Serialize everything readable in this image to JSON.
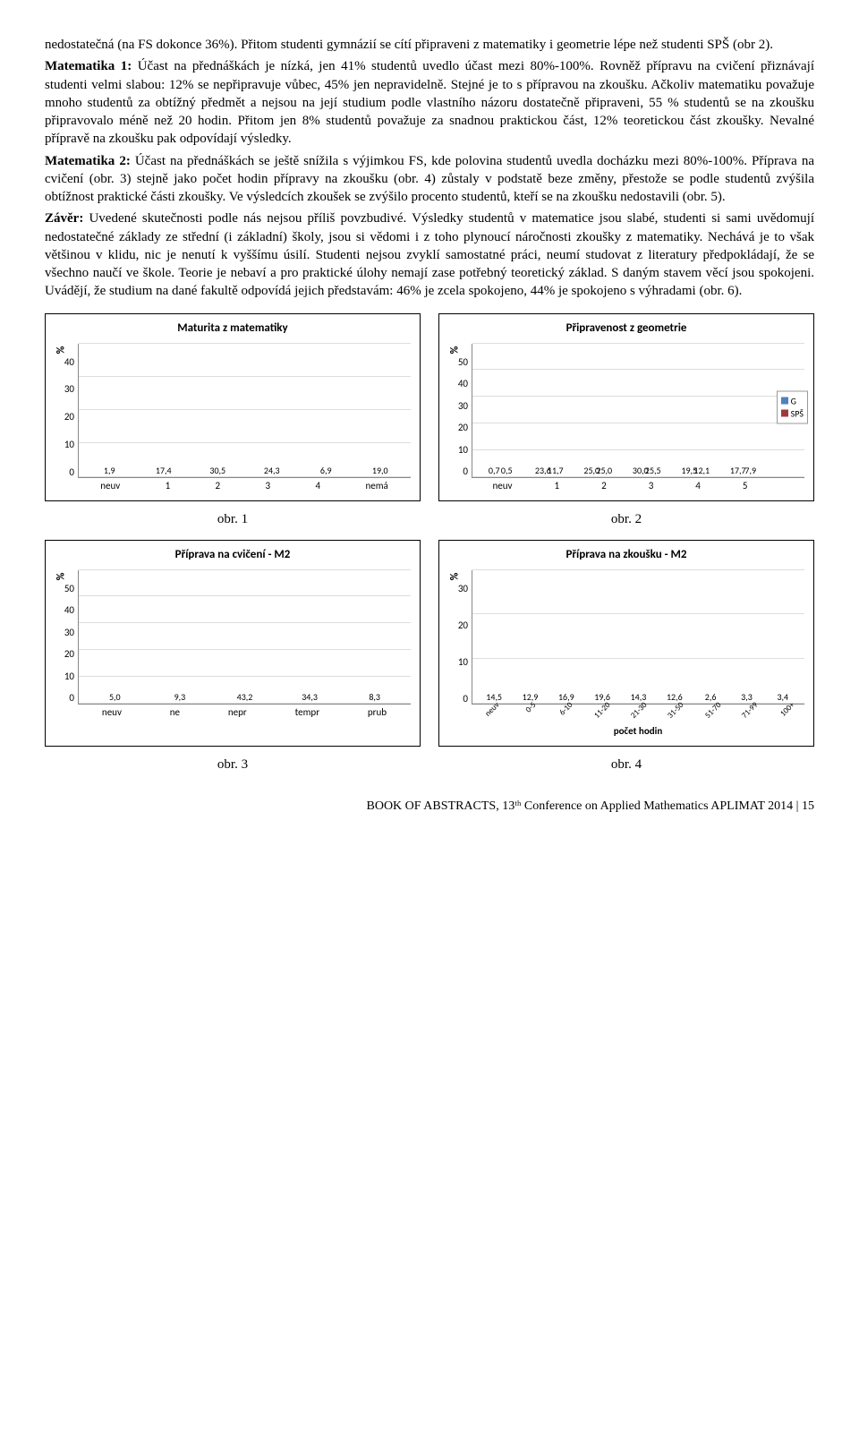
{
  "text": {
    "para1": "nedostatečná (na FS dokonce 36%). Přitom studenti gymnázií se cítí připraveni z matematiky i geometrie lépe než studenti SPŠ (obr 2).",
    "m1_label": "Matematika 1:",
    "m1_body": " Účast na přednáškách je nízká, jen 41% studentů uvedlo účast mezi 80%-100%. Rovněž přípravu na cvičení přiznávají studenti velmi slabou: 12% se nepřipravuje vůbec, 45% jen nepravidelně. Stejné je to s přípravou na zkoušku. Ačkoliv matematiku považuje mnoho studentů za obtížný předmět a nejsou na její studium podle vlastního názoru dostatečně připraveni, 55 % studentů se na zkoušku připravovalo méně než 20 hodin. Přitom jen 8% studentů považuje za snadnou praktickou část, 12% teoretickou část zkoušky. Nevalné přípravě na zkoušku pak odpovídají výsledky.",
    "m2_label": "Matematika 2:",
    "m2_body": " Účast na přednáškách se ještě snížila s výjimkou FS, kde polovina studentů uvedla docházku  mezi 80%-100%. Příprava na cvičení (obr. 3) stejně jako počet hodin přípravy na zkoušku (obr. 4) zůstaly v podstatě beze změny, přestože se podle studentů zvýšila obtížnost praktické části zkoušky. Ve výsledcích zkoušek se zvýšilo procento studentů, kteří se na zkoušku nedostavili (obr. 5).",
    "zaver_label": "Závěr:",
    "zaver_body": " Uvedené skutečnosti podle nás nejsou příliš povzbudivé. Výsledky studentů v matematice jsou slabé, studenti si sami uvědomují nedostatečné základy ze střední (i základní) školy, jsou si vědomi i z toho plynoucí náročnosti zkoušky z matematiky. Nechává je to však většinou v klidu, nic je nenutí k vyššímu úsilí. Studenti nejsou zvyklí samostatné práci, neumí studovat z literatury předpokládají, že se všechno naučí ve škole. Teorie je nebaví a pro praktické úlohy nemají zase potřebný teoretický základ. S daným stavem věcí jsou spokojeni. Uvádějí, že studium na dané fakultě odpovídá jejich představám: 46% je zcela spokojeno, 44% je spokojeno s výhradami (obr. 6)."
  },
  "chart1": {
    "title": "Maturita z matematiky",
    "type": "bar",
    "ylabel": "%",
    "ymax": 40,
    "ytick_step": 10,
    "categories": [
      "neuv",
      "1",
      "2",
      "3",
      "4",
      "nemá"
    ],
    "values": [
      1.9,
      17.4,
      30.5,
      24.3,
      6.9,
      19.0
    ],
    "labels": [
      "1,9",
      "17,4",
      "30,5",
      "24,3",
      "6,9",
      "19,0"
    ],
    "bar_color": "#4f81bd",
    "bg": "#ffffff"
  },
  "chart2": {
    "title": "Připravenost z geometrie",
    "type": "grouped-bar",
    "ylabel": "%",
    "ymax": 50,
    "ytick_step": 10,
    "categories": [
      "neuv",
      "1",
      "2",
      "3",
      "4",
      "5"
    ],
    "series": [
      {
        "name": "G",
        "color": "#4f81bd",
        "values": [
          0.7,
          23.6,
          25.0,
          30.0,
          19.5,
          17.7
        ],
        "labels": [
          "0,7",
          "23,6",
          "25,0",
          "30,0",
          "19,5",
          "17,7"
        ]
      },
      {
        "name": "SPŠ",
        "color": "#9e3a3e",
        "values": [
          0.5,
          11.7,
          25.0,
          25.5,
          12.1,
          7.9
        ],
        "labels": [
          "0,5",
          "11,7",
          "25,0",
          "25,5",
          "12,1",
          "7,9"
        ]
      }
    ],
    "bg": "#ffffff"
  },
  "chart3": {
    "title": "Příprava na cvičení - M2",
    "type": "bar",
    "ylabel": "%",
    "ymax": 50,
    "ytick_step": 10,
    "categories": [
      "neuv",
      "ne",
      "nepr",
      "tempr",
      "prub"
    ],
    "values": [
      5.0,
      9.3,
      43.2,
      34.3,
      8.3
    ],
    "labels": [
      "5,0",
      "9,3",
      "43,2",
      "34,3",
      "8,3"
    ],
    "bar_color": "#4f81bd",
    "bg": "#ffffff"
  },
  "chart4": {
    "title": "Příprava na zkoušku - M2",
    "type": "bar",
    "ylabel": "%",
    "ymax": 30,
    "ytick_step": 10,
    "categories": [
      "neuv",
      "0-5",
      "6-10",
      "11-20",
      "21-30",
      "31-50",
      "51-70",
      "71-99",
      "100+"
    ],
    "values": [
      14.5,
      12.9,
      16.9,
      19.6,
      14.3,
      12.6,
      2.6,
      3.3,
      3.4
    ],
    "labels": [
      "14,5",
      "12,9",
      "16,9",
      "19,6",
      "14,3",
      "12,6",
      "2,6",
      "3,3",
      "3,4"
    ],
    "bar_color": "#4f81bd",
    "x_title": "počet hodin",
    "bg": "#ffffff"
  },
  "captions": {
    "c1": "obr. 1",
    "c2": "obr. 2",
    "c3": "obr. 3",
    "c4": "obr. 4"
  },
  "footer": "BOOK OF ABSTRACTS, 13ᵗʰ Conference on Applied Mathematics APLIMAT 2014 | 15"
}
